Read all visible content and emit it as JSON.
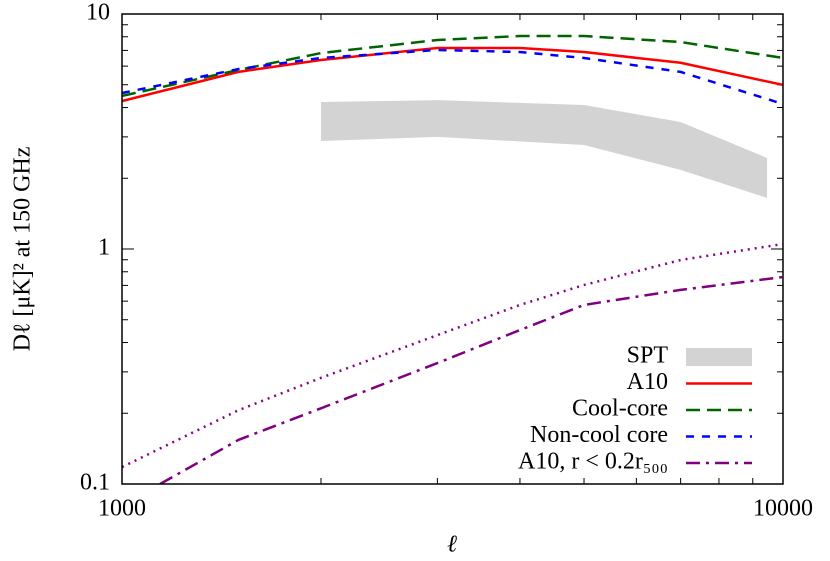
{
  "chart_data": {
    "type": "line",
    "xlabel": "ℓ",
    "ylabel": "Dℓ [μK]² at 150 GHz",
    "xlog": true,
    "ylog": true,
    "xlim": [
      1000,
      10000
    ],
    "ylim": [
      0.1,
      10
    ],
    "xticks": [
      1000,
      10000
    ],
    "yticks": [
      0.1,
      1,
      10
    ],
    "legend": "lower right",
    "series": [
      {
        "name": "SPT",
        "kind": "band",
        "color": "#d3d3d3",
        "x": [
          2000,
          3000,
          5000,
          7000,
          9460
        ],
        "upper": [
          4.22,
          4.3,
          4.1,
          3.47,
          2.44
        ],
        "lower": [
          2.88,
          3.0,
          2.77,
          2.17,
          1.65
        ]
      },
      {
        "name": "A10",
        "kind": "line",
        "linestyle": "solid",
        "color": "#ff0000",
        "x": [
          1000,
          1500,
          2000,
          3000,
          4000,
          5000,
          7000,
          10000
        ],
        "values": [
          4.26,
          5.67,
          6.37,
          7.17,
          7.17,
          6.89,
          6.2,
          4.99
        ]
      },
      {
        "name": "Cool-core",
        "kind": "line",
        "linestyle": "dashed",
        "color": "#006400",
        "x": [
          1000,
          1500,
          2000,
          3000,
          4000,
          5000,
          7000,
          10000
        ],
        "values": [
          4.48,
          5.78,
          6.82,
          7.75,
          8.06,
          8.06,
          7.6,
          6.5
        ]
      },
      {
        "name": "Non-cool core",
        "kind": "line",
        "linestyle": "short-dashed",
        "color": "#0000ff",
        "x": [
          1000,
          1500,
          2000,
          3000,
          4000,
          5000,
          7000,
          10000
        ],
        "values": [
          4.61,
          5.83,
          6.5,
          7.03,
          6.89,
          6.5,
          5.67,
          4.14
        ]
      },
      {
        "kind": "line",
        "linestyle": "dotted",
        "color": "#8b008b",
        "x": [
          1000,
          1500,
          2000,
          3000,
          4000,
          5000,
          7000,
          10000
        ],
        "values": [
          0.118,
          0.206,
          0.283,
          0.43,
          0.578,
          0.703,
          0.898,
          1.05
        ]
      },
      {
        "name": "A10, r < 0.2r₅₀₀",
        "kind": "line",
        "linestyle": "dash-dot",
        "color": "#800080",
        "x": [
          1142,
          1500,
          2000,
          3000,
          4000,
          5000,
          7000,
          10000
        ],
        "values": [
          0.1,
          0.154,
          0.21,
          0.327,
          0.452,
          0.578,
          0.67,
          0.76
        ]
      }
    ]
  }
}
